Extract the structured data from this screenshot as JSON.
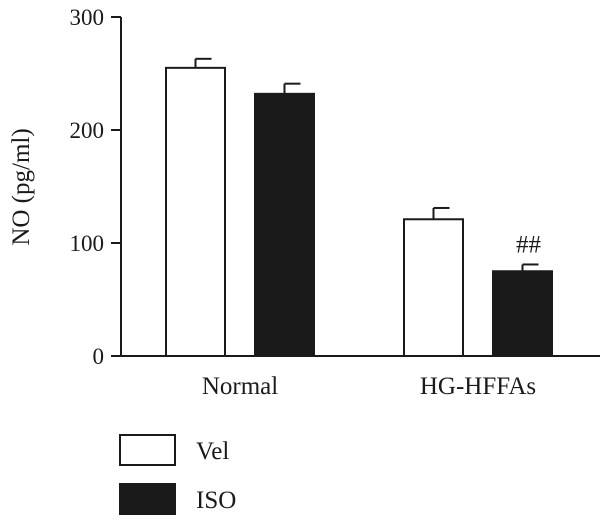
{
  "chart_data": {
    "type": "bar",
    "ylabel": "NO (pg/ml)",
    "xlabel": "",
    "ylim": [
      0,
      300
    ],
    "yticks": [
      "0",
      "100",
      "200",
      "300"
    ],
    "categories": [
      "Normal",
      "HG-HFFAs"
    ],
    "series": [
      {
        "name": "Vel",
        "values": [
          255,
          121
        ],
        "errors": [
          8,
          10
        ],
        "color": "#ffffff"
      },
      {
        "name": "ISO",
        "values": [
          232,
          75
        ],
        "errors": [
          9,
          6
        ],
        "color": "#1a1a1a"
      }
    ],
    "annotations": [
      {
        "category": "HG-HFFAs",
        "series": "ISO",
        "text": "##"
      }
    ],
    "legend_position": "bottom-left",
    "grid": false
  }
}
